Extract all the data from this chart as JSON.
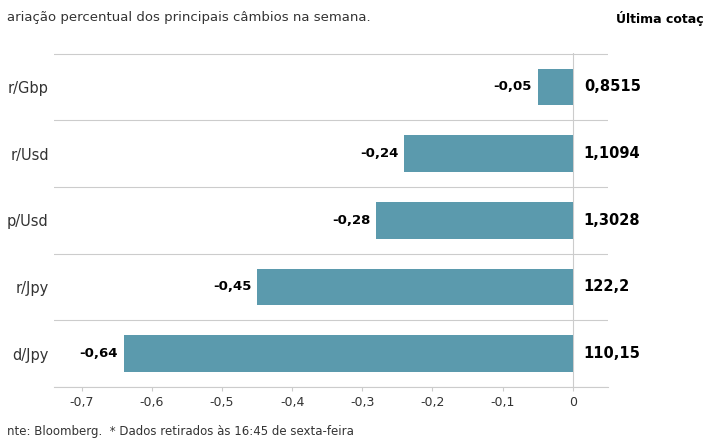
{
  "subtitle": "ariação percentual dos principais câmbios na semana.",
  "ultima_cotacao_label": "Última cotaç",
  "categories": [
    "r/Gbp",
    "r/Usd",
    "p/Usd",
    "r/Jpy",
    "d/Jpy"
  ],
  "values": [
    -0.05,
    -0.24,
    -0.28,
    -0.45,
    -0.64
  ],
  "bar_labels": [
    "-0,05",
    "-0,24",
    "-0,28",
    "-0,45",
    "-0,64"
  ],
  "cotacoes": [
    "0,8515",
    "1,1094",
    "1,3028",
    "122,2",
    "110,15"
  ],
  "bar_color": "#5b9aad",
  "xlim": [
    -0.74,
    0.05
  ],
  "xticks": [
    -0.7,
    -0.6,
    -0.5,
    -0.4,
    -0.3,
    -0.2,
    -0.1,
    0.0
  ],
  "xtick_labels": [
    "-0,7",
    "-0,6",
    "-0,5",
    "-0,4",
    "-0,3",
    "-0,2",
    "-0,1",
    "0"
  ],
  "footer": "nte: Bloomberg.  * Dados retirados às 16:45 de sexta-feira",
  "bg_color": "#ffffff",
  "text_color": "#333333",
  "grid_color": "#cccccc",
  "subtitle_fontsize": 9.5,
  "ylabel_fontsize": 10.5,
  "xlabel_fontsize": 9,
  "cotacao_fontsize": 10.5,
  "bar_label_fontsize": 9.5,
  "footer_fontsize": 8.5
}
